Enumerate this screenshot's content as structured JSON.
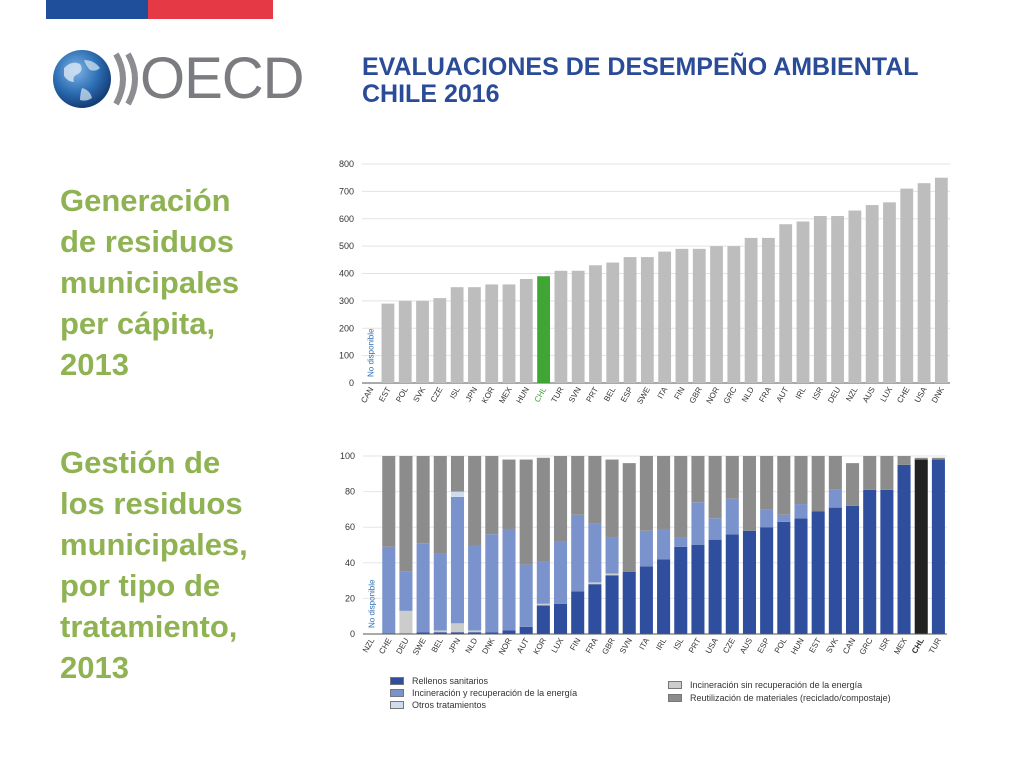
{
  "header": {
    "title_line1": "EVALUACIONES DE DESEMPEÑO AMBIENTAL",
    "title_line2": "CHILE 2016"
  },
  "logo": {
    "text": "OECD",
    "icon": "globe-chevron-logo"
  },
  "colors": {
    "flag_blue": "#1f4e9a",
    "flag_red": "#e53a45",
    "title_blue": "#2a4b97",
    "side_green": "#8fb352",
    "bar_gray": "#bdbdbd",
    "bar_highlight": "#3fa535",
    "landfill": "#2f4f9e",
    "incineration_energy": "#7b93cc",
    "other": "#cfdcec",
    "incineration_no_energy": "#cccccc",
    "recycling": "#8c8c8c",
    "chile_stack": "#222222"
  },
  "sections": {
    "section1_title": "Generación\nde residuos\nmunicipales\nper cápita,\n2013",
    "section2_title": "Gestión de\nlos residuos\nmunicipales,\npor tipo de\ntratamiento,\n2013"
  },
  "chart_data": [
    {
      "type": "bar",
      "categories": [
        "CAN",
        "EST",
        "POL",
        "SVK",
        "CZE",
        "ISL",
        "JPN",
        "KOR",
        "MEX",
        "HUN",
        "CHL",
        "TUR",
        "SVN",
        "PRT",
        "BEL",
        "ESP",
        "SWE",
        "ITA",
        "FIN",
        "GBR",
        "NOR",
        "GRC",
        "NLD",
        "FRA",
        "AUT",
        "IRL",
        "ISR",
        "DEU",
        "NZL",
        "AUS",
        "LUX",
        "CHE",
        "USA",
        "DNK"
      ],
      "values": [
        null,
        290,
        300,
        300,
        310,
        350,
        350,
        360,
        360,
        380,
        390,
        410,
        410,
        430,
        440,
        460,
        460,
        480,
        490,
        490,
        500,
        500,
        530,
        530,
        580,
        590,
        610,
        610,
        630,
        650,
        660,
        710,
        730,
        750
      ],
      "highlight": "CHL",
      "annotation": "No disponible",
      "yticks": [
        0,
        100,
        200,
        300,
        400,
        500,
        600,
        700,
        800
      ],
      "ylim": [
        0,
        800
      ],
      "title": "",
      "xlabel": "",
      "ylabel": ""
    },
    {
      "type": "bar",
      "stacked": true,
      "categories": [
        "NZL",
        "CHE",
        "DEU",
        "SWE",
        "BEL",
        "JPN",
        "NLD",
        "DNK",
        "NOR",
        "AUT",
        "KOR",
        "LUX",
        "FIN",
        "FRA",
        "GBR",
        "SVN",
        "ITA",
        "IRL",
        "ISL",
        "PRT",
        "USA",
        "CZE",
        "AUS",
        "ESP",
        "POL",
        "HUN",
        "EST",
        "SVK",
        "CAN",
        "GRC",
        "ISR",
        "MEX",
        "CHL",
        "TUR"
      ],
      "highlight": "CHL",
      "annotation": "No disponible",
      "yticks": [
        0,
        20,
        40,
        60,
        80,
        100
      ],
      "ylim": [
        0,
        100
      ],
      "series": [
        {
          "name": "Rellenos sanitarios",
          "color_key": "landfill",
          "values": [
            null,
            0,
            0,
            1,
            1,
            1,
            1,
            1,
            2,
            4,
            16,
            17,
            24,
            28,
            33,
            35,
            38,
            42,
            49,
            50,
            53,
            56,
            58,
            60,
            63,
            65,
            69,
            71,
            72,
            81,
            81,
            95,
            98,
            98
          ]
        },
        {
          "name": "Incineración sin recuperación de la energía",
          "color_key": "incineration_no_energy",
          "values": [
            null,
            0,
            13,
            0,
            1,
            5,
            1,
            0,
            0,
            0,
            1,
            0,
            0,
            1,
            1,
            0,
            0,
            0,
            0,
            0,
            0,
            0,
            0,
            0,
            0,
            0,
            0,
            0,
            0,
            0,
            0,
            0,
            0,
            0
          ]
        },
        {
          "name": "Incineración y recuperación de la energía",
          "color_key": "incineration_energy",
          "values": [
            null,
            49,
            22,
            50,
            43,
            71,
            48,
            55,
            57,
            35,
            24,
            35,
            43,
            33,
            20,
            0,
            20,
            17,
            5,
            24,
            12,
            20,
            0,
            10,
            4,
            8,
            0,
            10,
            0,
            0,
            0,
            0,
            0,
            0
          ]
        },
        {
          "name": "Otros tratamientos",
          "color_key": "other",
          "values": [
            null,
            0,
            0,
            0,
            0,
            3,
            0,
            0,
            0,
            0,
            0,
            0,
            0,
            0,
            0,
            0,
            0,
            0,
            0,
            0,
            0,
            0,
            0,
            0,
            0,
            0,
            0,
            0,
            0,
            0,
            0,
            0,
            0,
            0
          ]
        },
        {
          "name": "Reutilización de materiales (reciclado/compostaje)",
          "color_key": "recycling",
          "values": [
            null,
            51,
            65,
            49,
            55,
            20,
            50,
            44,
            39,
            59,
            58,
            48,
            33,
            38,
            44,
            61,
            42,
            41,
            46,
            26,
            35,
            24,
            42,
            30,
            33,
            27,
            31,
            19,
            24,
            19,
            19,
            5,
            1,
            1
          ]
        }
      ],
      "legend_order": [
        "Rellenos sanitarios",
        "Incineración sin recuperación de la energía",
        "Incineración y recuperación de la energía",
        "Reutilización de materiales (reciclado/compostaje)",
        "Otros tratamientos"
      ],
      "title": "",
      "xlabel": "",
      "ylabel": ""
    }
  ]
}
